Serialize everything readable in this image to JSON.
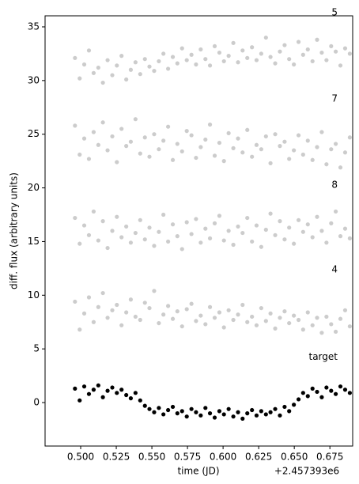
{
  "chart_data": {
    "type": "scatter",
    "xlabel": "time (JD)",
    "ylabel": "diff. flux (arbitrary units)",
    "x_offset_label": "+2.457393e6",
    "x": [
      0.496,
      0.4993,
      0.5025,
      0.5058,
      0.5091,
      0.5124,
      0.5156,
      0.5189,
      0.5222,
      0.5254,
      0.5287,
      0.532,
      0.5352,
      0.5385,
      0.5418,
      0.5451,
      0.5483,
      0.5516,
      0.5549,
      0.5581,
      0.5614,
      0.5647,
      0.5679,
      0.5712,
      0.5745,
      0.5778,
      0.581,
      0.5843,
      0.5876,
      0.5908,
      0.5941,
      0.5974,
      0.6006,
      0.6039,
      0.6072,
      0.6105,
      0.6137,
      0.617,
      0.6203,
      0.6235,
      0.6268,
      0.6301,
      0.6333,
      0.6366,
      0.6399,
      0.6432,
      0.6464,
      0.6497,
      0.653,
      0.6562,
      0.6595,
      0.6628,
      0.666,
      0.6693,
      0.6726,
      0.6759,
      0.6791,
      0.6824,
      0.6857,
      0.689
    ],
    "series": [
      {
        "name": "5",
        "color": "#cccccc",
        "values": [
          32.1,
          30.2,
          31.5,
          32.8,
          30.7,
          31.2,
          29.8,
          31.9,
          30.5,
          31.4,
          32.3,
          30.1,
          31.0,
          31.7,
          30.6,
          32.0,
          31.3,
          30.9,
          31.8,
          32.5,
          31.1,
          32.2,
          31.6,
          33.0,
          31.9,
          32.4,
          31.5,
          32.9,
          32.0,
          31.4,
          33.2,
          32.6,
          31.8,
          32.3,
          33.5,
          31.7,
          32.8,
          32.1,
          33.1,
          31.9,
          32.5,
          34.0,
          32.2,
          31.6,
          32.7,
          33.3,
          32.0,
          31.5,
          33.6,
          32.4,
          32.9,
          31.8,
          33.8,
          32.6,
          31.9,
          33.2,
          32.7,
          31.4,
          33.0,
          32.5
        ]
      },
      {
        "name": "7",
        "color": "#cccccc",
        "values": [
          25.8,
          23.1,
          24.6,
          22.7,
          25.2,
          24.0,
          26.1,
          23.5,
          24.8,
          22.4,
          25.5,
          23.9,
          24.3,
          26.4,
          23.2,
          24.7,
          22.9,
          25.0,
          23.6,
          24.4,
          25.7,
          22.6,
          24.1,
          23.4,
          25.3,
          24.9,
          22.8,
          23.8,
          24.5,
          25.9,
          23.0,
          24.2,
          22.5,
          25.1,
          23.7,
          24.6,
          23.3,
          25.4,
          22.9,
          24.0,
          23.6,
          24.8,
          22.3,
          25.0,
          23.9,
          24.3,
          22.7,
          23.5,
          24.9,
          23.1,
          24.4,
          22.6,
          23.8,
          25.2,
          22.2,
          23.6,
          24.1,
          21.9,
          23.3,
          24.7
        ]
      },
      {
        "name": "8",
        "color": "#cccccc",
        "values": [
          17.2,
          14.8,
          16.5,
          15.6,
          17.8,
          15.1,
          16.9,
          14.4,
          16.0,
          17.3,
          15.4,
          16.4,
          14.9,
          15.8,
          17.0,
          15.2,
          16.3,
          14.6,
          15.9,
          17.5,
          15.0,
          16.6,
          15.5,
          14.3,
          16.8,
          15.7,
          17.1,
          14.9,
          16.2,
          15.3,
          16.7,
          17.4,
          15.1,
          16.0,
          14.7,
          16.4,
          15.8,
          17.2,
          15.0,
          16.5,
          14.5,
          16.1,
          17.6,
          15.6,
          16.9,
          15.2,
          16.3,
          14.8,
          17.0,
          15.9,
          16.6,
          15.4,
          17.3,
          16.0,
          14.9,
          16.7,
          17.8,
          15.5,
          16.2,
          15.3
        ]
      },
      {
        "name": "4",
        "color": "#cccccc",
        "values": [
          9.4,
          6.8,
          8.3,
          9.8,
          7.5,
          8.9,
          10.2,
          7.9,
          8.6,
          9.1,
          7.2,
          8.4,
          9.6,
          8.0,
          7.7,
          9.3,
          8.8,
          10.4,
          7.4,
          8.2,
          9.0,
          7.8,
          8.5,
          7.1,
          8.7,
          9.2,
          7.6,
          8.1,
          7.3,
          8.9,
          7.9,
          8.4,
          7.0,
          8.6,
          7.7,
          8.2,
          9.1,
          7.5,
          8.0,
          7.2,
          8.8,
          7.6,
          8.3,
          6.9,
          7.9,
          8.5,
          7.4,
          8.1,
          7.7,
          6.8,
          8.4,
          7.2,
          7.9,
          6.5,
          8.0,
          7.3,
          6.6,
          7.8,
          8.6,
          7.1
        ]
      },
      {
        "name": "target",
        "color": "#000000",
        "values": [
          1.3,
          0.2,
          1.5,
          0.8,
          1.2,
          1.6,
          0.5,
          1.1,
          1.4,
          0.9,
          1.2,
          0.7,
          0.4,
          0.9,
          0.2,
          -0.3,
          -0.6,
          -0.9,
          -0.5,
          -1.1,
          -0.7,
          -0.4,
          -1.0,
          -0.8,
          -1.3,
          -0.6,
          -0.9,
          -1.2,
          -0.5,
          -1.0,
          -1.4,
          -0.8,
          -1.1,
          -0.6,
          -1.3,
          -0.9,
          -1.5,
          -1.0,
          -0.7,
          -1.2,
          -0.8,
          -1.1,
          -0.9,
          -0.6,
          -1.2,
          -0.4,
          -0.8,
          -0.2,
          0.3,
          0.9,
          0.6,
          1.3,
          1.0,
          0.5,
          1.4,
          1.1,
          0.8,
          1.5,
          1.2,
          0.9
        ]
      }
    ],
    "xlim": [
      0.475,
      0.691
    ],
    "xticks": [
      {
        "value": 0.5,
        "label": "0.500"
      },
      {
        "value": 0.525,
        "label": "0.525"
      },
      {
        "value": 0.55,
        "label": "0.550"
      },
      {
        "value": 0.575,
        "label": "0.575"
      },
      {
        "value": 0.6,
        "label": "0.600"
      },
      {
        "value": 0.625,
        "label": "0.625"
      },
      {
        "value": 0.65,
        "label": "0.650"
      },
      {
        "value": 0.675,
        "label": "0.675"
      }
    ],
    "ylim": [
      -4.05,
      36.03
    ],
    "yticks": [
      0,
      5,
      10,
      15,
      20,
      25,
      30,
      35
    ],
    "grid": false
  }
}
